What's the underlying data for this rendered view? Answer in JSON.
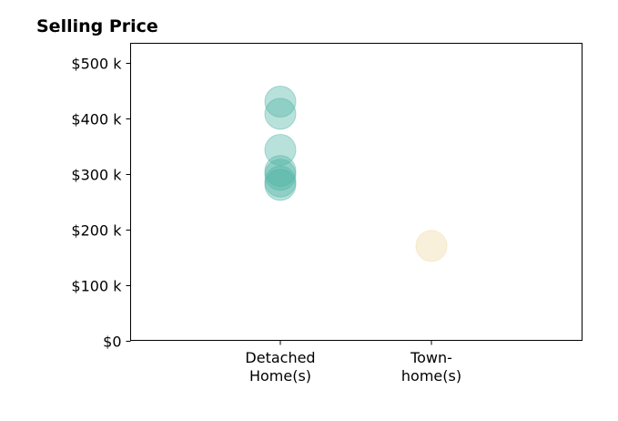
{
  "chart_data": {
    "type": "scatter",
    "title": "Selling Price",
    "xlabel": "",
    "ylabel": "",
    "ylim": [
      0,
      535000
    ],
    "yticks": [
      {
        "value": 0,
        "label": "$0"
      },
      {
        "value": 100000,
        "label": "$100 k"
      },
      {
        "value": 200000,
        "label": "$200 k"
      },
      {
        "value": 300000,
        "label": "$300 k"
      },
      {
        "value": 400000,
        "label": "$400 k"
      },
      {
        "value": 500000,
        "label": "$500 k"
      }
    ],
    "categories": [
      {
        "label_lines": [
          "Detached",
          "Home(s)"
        ]
      },
      {
        "label_lines": [
          "Town-",
          "home(s)"
        ]
      }
    ],
    "series": [
      {
        "category_index": 0,
        "color": "#4fb3a6",
        "values": [
          430000,
          408000,
          343000,
          305000,
          298000,
          286000,
          280000
        ]
      },
      {
        "category_index": 1,
        "color": "#f0d9a4",
        "values": [
          170000
        ]
      }
    ],
    "grid": false,
    "legend": "none"
  }
}
